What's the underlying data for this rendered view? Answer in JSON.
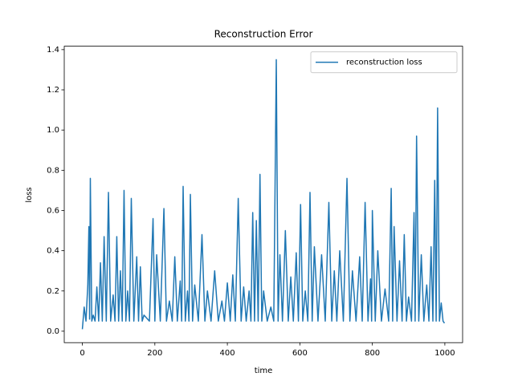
{
  "chart_data": {
    "type": "line",
    "title": "Reconstruction Error",
    "x_label": "time",
    "y_label": "loss",
    "x": [
      0,
      5,
      10,
      15,
      18,
      20,
      22,
      26,
      30,
      35,
      40,
      45,
      50,
      55,
      60,
      66,
      72,
      78,
      85,
      90,
      95,
      100,
      105,
      110,
      115,
      120,
      125,
      130,
      135,
      142,
      150,
      155,
      160,
      165,
      170,
      185,
      195,
      200,
      205,
      215,
      225,
      232,
      240,
      248,
      255,
      262,
      270,
      274,
      278,
      284,
      290,
      294,
      298,
      304,
      310,
      320,
      330,
      338,
      345,
      355,
      365,
      375,
      385,
      392,
      400,
      408,
      415,
      422,
      430,
      438,
      445,
      452,
      460,
      465,
      470,
      475,
      480,
      485,
      490,
      495,
      500,
      510,
      520,
      528,
      535,
      540,
      545,
      552,
      560,
      568,
      575,
      582,
      590,
      596,
      602,
      608,
      615,
      622,
      628,
      634,
      640,
      650,
      660,
      670,
      680,
      688,
      695,
      702,
      710,
      720,
      730,
      738,
      745,
      755,
      765,
      772,
      780,
      788,
      795,
      798,
      800,
      808,
      815,
      825,
      835,
      845,
      852,
      856,
      860,
      868,
      875,
      882,
      888,
      894,
      900,
      908,
      915,
      918,
      922,
      928,
      935,
      942,
      950,
      956,
      962,
      967,
      972,
      976,
      980,
      985,
      990,
      995,
      999
    ],
    "series": [
      {
        "name": "reconstruction loss",
        "color": "#1f77b4",
        "values": [
          0.01,
          0.12,
          0.05,
          0.23,
          0.52,
          0.06,
          0.76,
          0.05,
          0.08,
          0.05,
          0.22,
          0.05,
          0.34,
          0.05,
          0.47,
          0.05,
          0.69,
          0.05,
          0.18,
          0.05,
          0.47,
          0.05,
          0.3,
          0.05,
          0.7,
          0.05,
          0.2,
          0.05,
          0.66,
          0.05,
          0.37,
          0.05,
          0.32,
          0.05,
          0.08,
          0.05,
          0.56,
          0.05,
          0.38,
          0.05,
          0.61,
          0.05,
          0.15,
          0.05,
          0.37,
          0.05,
          0.25,
          0.05,
          0.72,
          0.05,
          0.2,
          0.05,
          0.68,
          0.05,
          0.23,
          0.05,
          0.48,
          0.05,
          0.2,
          0.05,
          0.3,
          0.05,
          0.15,
          0.05,
          0.24,
          0.05,
          0.28,
          0.05,
          0.66,
          0.05,
          0.22,
          0.05,
          0.2,
          0.05,
          0.59,
          0.05,
          0.55,
          0.05,
          0.78,
          0.05,
          0.2,
          0.05,
          0.12,
          0.05,
          1.35,
          0.05,
          0.38,
          0.05,
          0.5,
          0.05,
          0.27,
          0.05,
          0.39,
          0.05,
          0.63,
          0.05,
          0.2,
          0.05,
          0.69,
          0.05,
          0.42,
          0.05,
          0.38,
          0.05,
          0.64,
          0.05,
          0.3,
          0.05,
          0.4,
          0.05,
          0.76,
          0.05,
          0.3,
          0.05,
          0.37,
          0.05,
          0.64,
          0.05,
          0.26,
          0.05,
          0.6,
          0.05,
          0.4,
          0.05,
          0.21,
          0.05,
          0.71,
          0.05,
          0.52,
          0.05,
          0.35,
          0.05,
          0.48,
          0.05,
          0.17,
          0.05,
          0.59,
          0.05,
          0.97,
          0.05,
          0.38,
          0.05,
          0.23,
          0.05,
          0.42,
          0.05,
          0.75,
          0.05,
          1.11,
          0.05,
          0.14,
          0.05,
          0.04
        ]
      }
    ],
    "xlim": [
      -49.95,
      1048.95
    ],
    "ylim": [
      -0.057,
      1.417
    ],
    "xticks": [
      0,
      200,
      400,
      600,
      800,
      1000
    ],
    "yticks": [
      {
        "value": 0,
        "label": "0.0"
      },
      0.2,
      0.4,
      0.6,
      0.8,
      {
        "value": 1,
        "label": "1.0"
      },
      1.2,
      1.4
    ],
    "legend": "upper right",
    "grid": false
  }
}
